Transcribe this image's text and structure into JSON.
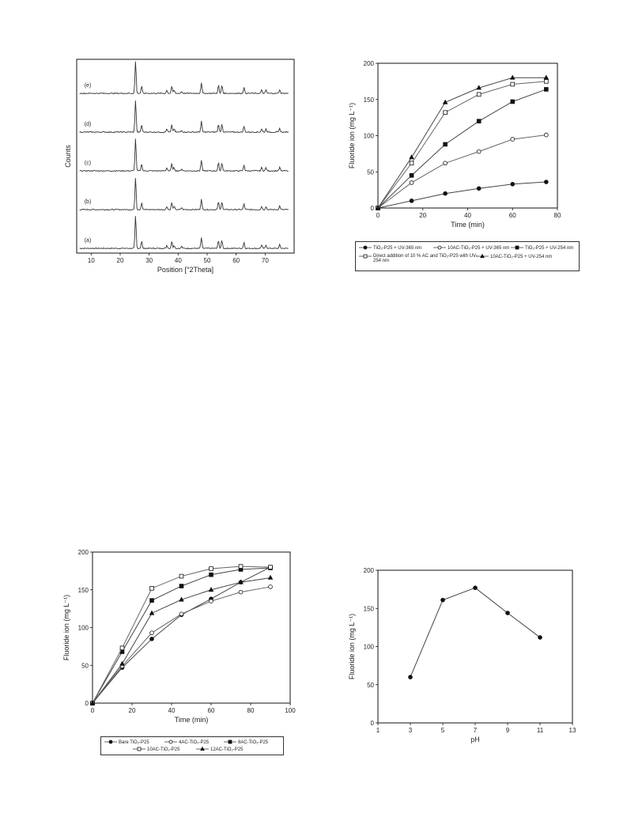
{
  "chart_data": [
    {
      "type": "line",
      "chart_kind": "xrd-patterns",
      "xlabel": "Position [°2Theta]",
      "ylabel": "Counts",
      "xlim": [
        5,
        80
      ],
      "xticks": [
        10,
        20,
        30,
        40,
        50,
        60,
        70
      ],
      "grid": false,
      "series": [
        {
          "name": "(a)"
        },
        {
          "name": "(b)"
        },
        {
          "name": "(c)"
        },
        {
          "name": "(d)"
        },
        {
          "name": "(e)"
        }
      ],
      "peaks": [
        {
          "x": 25.3,
          "h": 1.0
        },
        {
          "x": 27.4,
          "h": 0.22
        },
        {
          "x": 36.1,
          "h": 0.1
        },
        {
          "x": 37.8,
          "h": 0.22
        },
        {
          "x": 38.6,
          "h": 0.1
        },
        {
          "x": 41.2,
          "h": 0.06
        },
        {
          "x": 48.0,
          "h": 0.33
        },
        {
          "x": 53.9,
          "h": 0.25
        },
        {
          "x": 55.1,
          "h": 0.25
        },
        {
          "x": 62.7,
          "h": 0.18
        },
        {
          "x": 68.8,
          "h": 0.1
        },
        {
          "x": 70.3,
          "h": 0.1
        },
        {
          "x": 75.0,
          "h": 0.11
        }
      ]
    },
    {
      "type": "line",
      "xlabel": "Time (min)",
      "ylabel": "Fluoride ion (mg L⁻¹)",
      "xlim": [
        0,
        80
      ],
      "ylim": [
        0,
        200
      ],
      "xticks": [
        0,
        20,
        40,
        60,
        80
      ],
      "yticks": [
        0,
        50,
        100,
        150,
        200
      ],
      "grid": false,
      "legend_position": "bottom",
      "x": [
        0,
        15,
        30,
        45,
        60,
        75
      ],
      "series": [
        {
          "name": "TiO₂-P25 + UV-365 nm",
          "marker": "filled-circle",
          "values": [
            0,
            10,
            20,
            27,
            33,
            36
          ]
        },
        {
          "name": "10AC-TiO₂-P25 + UV-365 nm",
          "marker": "open-circle",
          "values": [
            0,
            35,
            62,
            78,
            95,
            101
          ]
        },
        {
          "name": "TiO₂-P25 + UV-254 nm",
          "marker": "filled-square",
          "values": [
            0,
            45,
            88,
            120,
            147,
            164
          ]
        },
        {
          "name": "Direct addition of 10 % AC and TiO₂-P25 with UV-254 nm",
          "marker": "open-square",
          "values": [
            0,
            62,
            132,
            157,
            171,
            175
          ]
        },
        {
          "name": "10AC-TiO₂-P25 + UV-254 nm",
          "marker": "filled-triangle",
          "values": [
            0,
            70,
            146,
            166,
            180,
            180
          ]
        }
      ]
    },
    {
      "type": "line",
      "xlabel": "Time (min)",
      "ylabel": "Fluoride ion (mg L⁻¹)",
      "xlim": [
        0,
        100
      ],
      "ylim": [
        0,
        200
      ],
      "xticks": [
        0,
        20,
        40,
        60,
        80,
        100
      ],
      "yticks": [
        0,
        50,
        100,
        150,
        200
      ],
      "grid": false,
      "legend_position": "bottom",
      "x": [
        0,
        15,
        30,
        45,
        60,
        75,
        90
      ],
      "series": [
        {
          "name": "Bare TiO₂-P25",
          "marker": "filled-circle",
          "values": [
            0,
            47,
            85,
            117,
            138,
            160,
            180
          ]
        },
        {
          "name": "4AC-TiO₂-P25",
          "marker": "open-circle",
          "values": [
            0,
            49,
            93,
            118,
            135,
            147,
            154
          ]
        },
        {
          "name": "8AC-TiO₂-P25",
          "marker": "filled-square",
          "values": [
            0,
            68,
            136,
            155,
            170,
            177,
            179
          ]
        },
        {
          "name": "10AC-TiO₂-P25",
          "marker": "open-square",
          "values": [
            0,
            73,
            152,
            168,
            178,
            181,
            180
          ]
        },
        {
          "name": "12AC-TiO₂-P25",
          "marker": "filled-triangle",
          "values": [
            0,
            52,
            119,
            137,
            150,
            160,
            166
          ]
        }
      ]
    },
    {
      "type": "line",
      "xlabel": "pH",
      "ylabel": "Fluoride ion (mg L⁻¹)",
      "xlim": [
        1,
        13
      ],
      "ylim": [
        0,
        200
      ],
      "xticks": [
        1,
        3,
        5,
        7,
        9,
        11,
        13
      ],
      "yticks": [
        0,
        50,
        100,
        150,
        200
      ],
      "grid": false,
      "x": [
        3,
        5,
        7,
        9,
        11
      ],
      "series": [
        {
          "marker": "filled-circle",
          "values": [
            60,
            161,
            177,
            144,
            112
          ]
        }
      ]
    }
  ]
}
